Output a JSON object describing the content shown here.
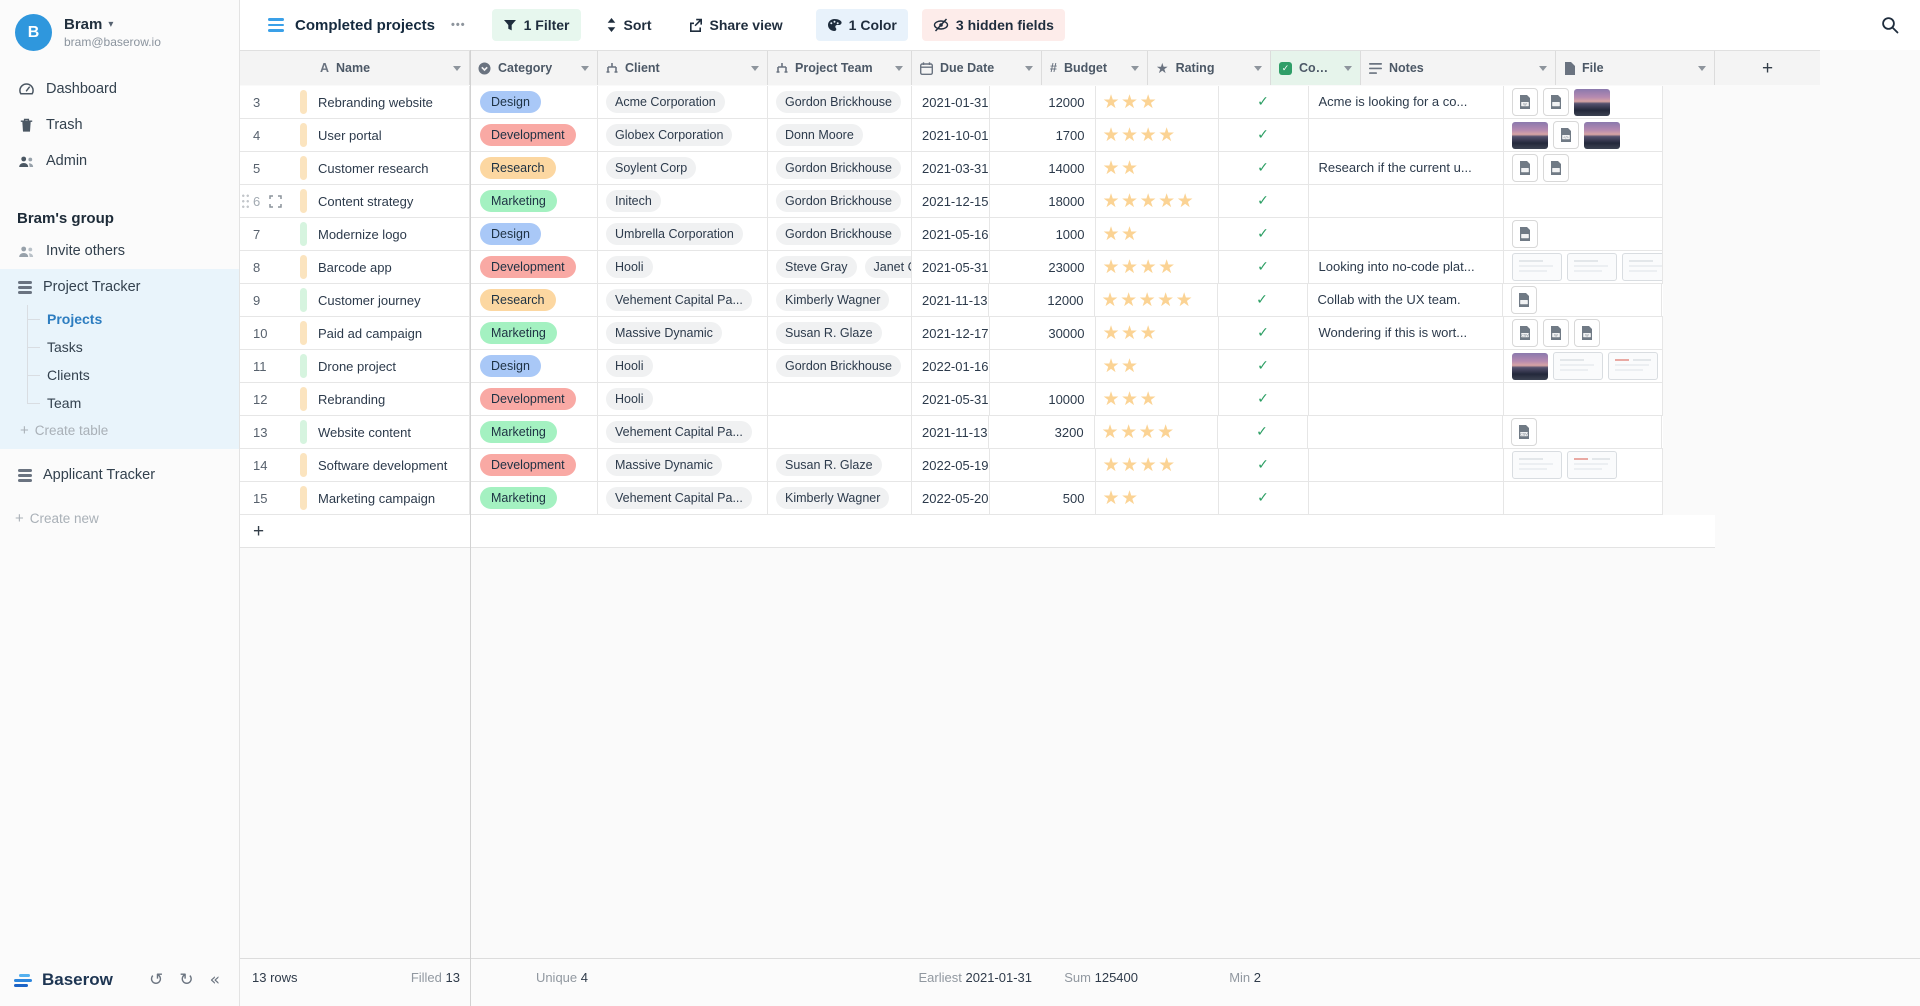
{
  "icons": {
    "star": "★",
    "check": "✓",
    "plus": "+",
    "caret": "▾",
    "collapse": "«",
    "undo": "↺",
    "redo": "↻",
    "dots": "•••"
  },
  "colors": {
    "category": {
      "Design": "#a9c8f7",
      "Development": "#f9a9a4",
      "Research": "#fcd7a1",
      "Marketing": "#a4f1c1"
    },
    "stripe": {
      "peach": "#fbe4bf",
      "green": "#d6f4df"
    },
    "star": "#fbd394",
    "check_green": "#2b9e63",
    "accent_blue": "#2d7dc0"
  },
  "sidebar": {
    "user": {
      "initial": "B",
      "name": "Bram",
      "email": "bram@baserow.io"
    },
    "menu": [
      {
        "icon": "dashboard-icon",
        "label": "Dashboard"
      },
      {
        "icon": "trash-icon",
        "label": "Trash"
      },
      {
        "icon": "admin-icon",
        "label": "Admin"
      }
    ],
    "group_name": "Bram's group",
    "invite_label": "Invite others",
    "apps": [
      {
        "icon": "database-icon",
        "label": "Project Tracker",
        "active": true,
        "tables": [
          {
            "label": "Projects",
            "active": true
          },
          {
            "label": "Tasks",
            "active": false
          },
          {
            "label": "Clients",
            "active": false
          },
          {
            "label": "Team",
            "active": false
          }
        ],
        "create_table_label": "Create table"
      },
      {
        "icon": "database-icon",
        "label": "Applicant Tracker",
        "active": false
      }
    ],
    "create_new_label": "Create new",
    "brand": "Baserow"
  },
  "toolbar": {
    "view_name": "Completed projects",
    "filter_label": "1 Filter",
    "sort_label": "Sort",
    "share_label": "Share view",
    "color_label": "1 Color",
    "hidden_label": "3 hidden fields"
  },
  "grid": {
    "columns": [
      {
        "name": "Name",
        "icon": "text-field-icon"
      },
      {
        "name": "Category",
        "icon": "single-select-icon"
      },
      {
        "name": "Client",
        "icon": "link-row-icon"
      },
      {
        "name": "Project Team",
        "icon": "link-row-icon"
      },
      {
        "name": "Due Date",
        "icon": "calendar-icon"
      },
      {
        "name": "Budget",
        "icon": "number-icon"
      },
      {
        "name": "Rating",
        "icon": "star-icon"
      },
      {
        "name": "Com...",
        "icon": "checkbox-icon",
        "highlight": true
      },
      {
        "name": "Notes",
        "icon": "long-text-icon"
      },
      {
        "name": "File",
        "icon": "file-icon"
      }
    ],
    "rows": [
      {
        "num": "3",
        "stripe": "peach",
        "hover": false,
        "name": "Rebranding website",
        "category": "Design",
        "client": "Acme Corporation",
        "team": [
          "Gordon Brickhouse"
        ],
        "due": "2021-01-31",
        "budget": "12000",
        "rating": 3,
        "completed": true,
        "notes": "Acme is looking for a co...",
        "files": [
          "doc-w",
          "doc",
          "img"
        ]
      },
      {
        "num": "4",
        "stripe": "peach",
        "hover": false,
        "name": "User portal",
        "category": "Development",
        "client": "Globex Corporation",
        "team": [
          "Donn Moore"
        ],
        "due": "2021-10-01",
        "budget": "1700",
        "rating": 4,
        "completed": true,
        "notes": "",
        "files": [
          "img",
          "doc-code",
          "img"
        ]
      },
      {
        "num": "5",
        "stripe": "peach",
        "hover": false,
        "name": "Customer research",
        "category": "Research",
        "client": "Soylent Corp",
        "team": [
          "Gordon Brickhouse"
        ],
        "due": "2021-03-31",
        "budget": "14000",
        "rating": 2,
        "completed": true,
        "notes": "Research if the current u...",
        "files": [
          "doc",
          "doc"
        ]
      },
      {
        "num": "6",
        "stripe": "peach",
        "hover": true,
        "name": "Content strategy",
        "category": "Marketing",
        "client": "Initech",
        "team": [
          "Gordon Brickhouse"
        ],
        "due": "2021-12-15",
        "budget": "18000",
        "rating": 5,
        "completed": true,
        "notes": "",
        "files": []
      },
      {
        "num": "7",
        "stripe": "green",
        "hover": false,
        "name": "Modernize logo",
        "category": "Design",
        "client": "Umbrella Corporation",
        "team": [
          "Gordon Brickhouse"
        ],
        "due": "2021-05-16",
        "budget": "1000",
        "rating": 2,
        "completed": true,
        "notes": "",
        "files": [
          "doc"
        ]
      },
      {
        "num": "8",
        "stripe": "peach",
        "hover": false,
        "name": "Barcode app",
        "category": "Development",
        "client": "Hooli",
        "team": [
          "Steve Gray",
          "Janet Co"
        ],
        "due": "2021-05-31",
        "budget": "23000",
        "rating": 4,
        "completed": true,
        "notes": "Looking into no-code plat...",
        "files": [
          "shot",
          "shot",
          "shot"
        ]
      },
      {
        "num": "9",
        "stripe": "green",
        "hover": false,
        "name": "Customer journey",
        "category": "Research",
        "client": "Vehement Capital Pa...",
        "team": [
          "Kimberly Wagner"
        ],
        "due": "2021-11-13",
        "budget": "12000",
        "rating": 5,
        "completed": true,
        "notes": "Collab with the UX team.",
        "files": [
          "doc"
        ]
      },
      {
        "num": "10",
        "stripe": "peach",
        "hover": false,
        "name": "Paid ad campaign",
        "category": "Marketing",
        "client": "Massive Dynamic",
        "team": [
          "Susan R. Glaze"
        ],
        "due": "2021-12-17",
        "budget": "30000",
        "rating": 3,
        "completed": true,
        "notes": "Wondering if this is wort...",
        "files": [
          "doc-csv",
          "doc-w",
          "doc-w"
        ]
      },
      {
        "num": "11",
        "stripe": "green",
        "hover": false,
        "name": "Drone project",
        "category": "Design",
        "client": "Hooli",
        "team": [
          "Gordon Brickhouse"
        ],
        "due": "2022-01-16",
        "budget": "",
        "rating": 2,
        "completed": true,
        "notes": "",
        "files": [
          "img",
          "shot",
          "shot-red"
        ]
      },
      {
        "num": "12",
        "stripe": "peach",
        "hover": false,
        "name": "Rebranding",
        "category": "Development",
        "client": "Hooli",
        "team": [],
        "due": "2021-05-31",
        "budget": "10000",
        "rating": 3,
        "completed": true,
        "notes": "",
        "files": []
      },
      {
        "num": "13",
        "stripe": "green",
        "hover": false,
        "name": "Website content",
        "category": "Marketing",
        "client": "Vehement Capital Pa...",
        "team": [],
        "due": "2021-11-13",
        "budget": "3200",
        "rating": 4,
        "completed": true,
        "notes": "",
        "files": [
          "doc-csv"
        ]
      },
      {
        "num": "14",
        "stripe": "peach",
        "hover": false,
        "name": "Software development",
        "category": "Development",
        "client": "Massive Dynamic",
        "team": [
          "Susan R. Glaze"
        ],
        "due": "2022-05-19",
        "budget": "",
        "rating": 4,
        "completed": true,
        "notes": "",
        "files": [
          "shot",
          "shot-red"
        ]
      },
      {
        "num": "15",
        "stripe": "peach",
        "hover": false,
        "name": "Marketing campaign",
        "category": "Marketing",
        "client": "Vehement Capital Pa...",
        "team": [
          "Kimberly Wagner"
        ],
        "due": "2022-05-20",
        "budget": "500",
        "rating": 2,
        "completed": true,
        "notes": "",
        "files": []
      }
    ]
  },
  "status_bar": {
    "row_count": "13 rows",
    "aggregations": [
      {
        "label": "Filled",
        "value": "13",
        "column": "Name"
      },
      {
        "label": "Unique",
        "value": "4",
        "column": "Category"
      },
      {
        "label": "Earliest",
        "value": "2021-01-31",
        "column": "Due Date"
      },
      {
        "label": "Sum",
        "value": "125400",
        "column": "Budget"
      },
      {
        "label": "Min",
        "value": "2",
        "column": "Rating"
      }
    ]
  }
}
